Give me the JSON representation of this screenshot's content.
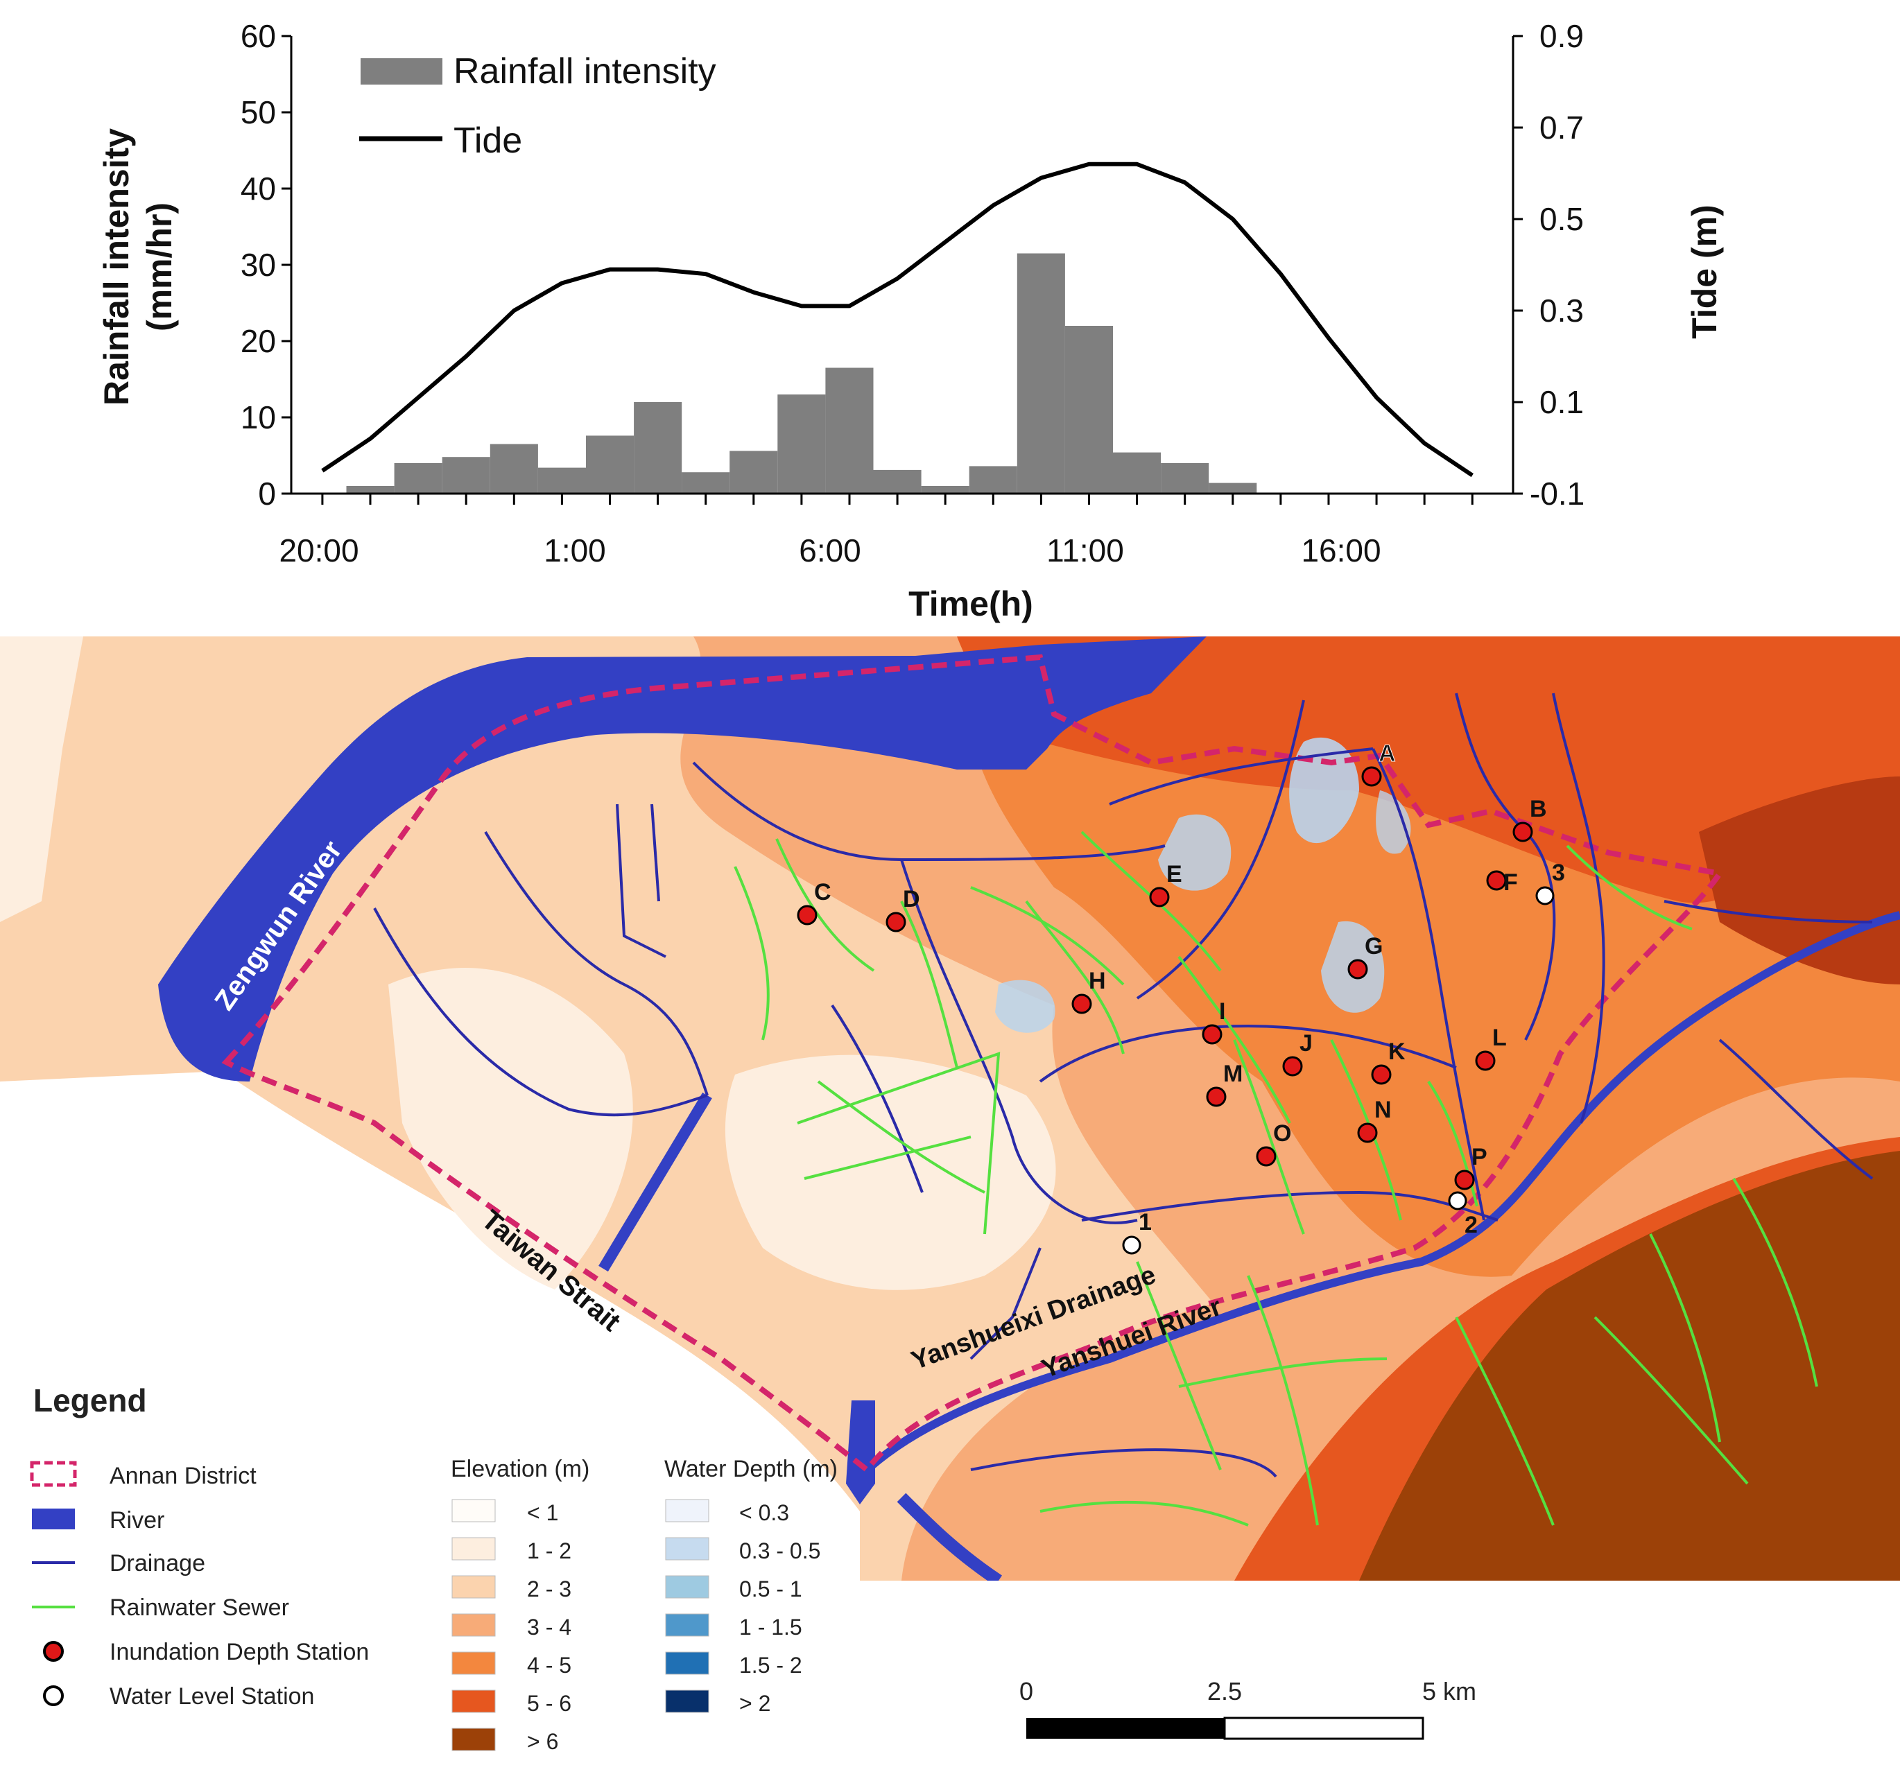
{
  "chart_data": {
    "type": "bar+line",
    "xlabel": "Time(h)",
    "ylabel_left": "Rainfall intensity (mm/hr)",
    "ylabel_right": "Tide (m)",
    "ylim_left": [
      0,
      60
    ],
    "ylim_right": [
      -0.1,
      0.9
    ],
    "yticks_left": [
      "0",
      "10",
      "20",
      "30",
      "40",
      "50",
      "60"
    ],
    "yticks_right": [
      "-0.1",
      "0.1",
      "0.3",
      "0.5",
      "0.7",
      "0.9"
    ],
    "xtick_labels": [
      "20:00",
      "1:00",
      "6:00",
      "11:00",
      "16:00"
    ],
    "legend": [
      "Rainfall intensity",
      "Tide"
    ],
    "rain_hours": [
      21,
      22,
      23,
      24,
      25,
      26,
      27,
      28,
      29,
      30,
      31,
      32,
      33,
      34,
      35,
      36,
      37,
      38,
      39
    ],
    "rain_values": [
      1,
      4,
      4.8,
      6.5,
      3.4,
      7.6,
      12,
      2.8,
      5.6,
      13,
      16.5,
      3.1,
      1,
      3.6,
      31.5,
      22,
      5.4,
      4,
      1.4
    ],
    "tide_hours": [
      20,
      21,
      22,
      23,
      24,
      25,
      26,
      27,
      28,
      29,
      30,
      31,
      32,
      33,
      34,
      35,
      36,
      37,
      38,
      39,
      40,
      41,
      42,
      43,
      44
    ],
    "tide_values": [
      -0.05,
      0.02,
      0.11,
      0.2,
      0.3,
      0.36,
      0.39,
      0.39,
      0.38,
      0.34,
      0.31,
      0.31,
      0.37,
      0.45,
      0.53,
      0.59,
      0.62,
      0.62,
      0.58,
      0.5,
      0.38,
      0.24,
      0.11,
      0.01,
      -0.06
    ]
  },
  "map": {
    "place_labels": {
      "zengwun": "Zengwun River",
      "taiwan_strait": "Taiwan Strait",
      "yanshueixi": "Yanshueixi Drainage",
      "yanshuei": "Yanshuei River"
    },
    "inundation_stations": [
      "A",
      "B",
      "C",
      "D",
      "E",
      "F",
      "G",
      "H",
      "I",
      "J",
      "K",
      "L",
      "M",
      "N",
      "O",
      "P"
    ],
    "water_level_stations": [
      "1",
      "2",
      "3"
    ],
    "colors": {
      "river": "#3340c4",
      "drainage": "#2a2aa8",
      "sewer": "#55e040",
      "boundary": "#d4256a",
      "station_inundation": "#e01818",
      "elev_lt1": "#fffcf8",
      "elev_1_2": "#fdeedf",
      "elev_2_3": "#fbd3ae",
      "elev_3_4": "#f7ab78",
      "elev_4_5": "#f3873e",
      "elev_5_6": "#e6571f",
      "elev_gt6": "#9c4108"
    }
  },
  "legend": {
    "title": "Legend",
    "items": [
      "Annan District",
      "River",
      "Drainage",
      "Rainwater Sewer",
      "Inundation Depth Station",
      "Water Level Station"
    ],
    "elevation_title": "Elevation (m)",
    "elevation_classes": [
      "< 1",
      "1 - 2",
      "2 - 3",
      "3 - 4",
      "4 - 5",
      "5 - 6",
      "> 6"
    ],
    "elevation_colors": [
      "#fffcf8",
      "#fdeedf",
      "#fbd3ae",
      "#f7ab78",
      "#f3873e",
      "#e6571f",
      "#9c4108"
    ],
    "depth_title": "Water Depth (m)",
    "depth_classes": [
      "< 0.3",
      "0.3 - 0.5",
      "0.5 - 1",
      "1 - 1.5",
      "1.5 - 2",
      "> 2"
    ],
    "depth_colors": [
      "#eff3fb",
      "#c6dbef",
      "#9ecae1",
      "#4f98cb",
      "#2070b4",
      "#08306b"
    ]
  },
  "scale_bar": {
    "labels": [
      "0",
      "2.5",
      "5 km"
    ]
  }
}
